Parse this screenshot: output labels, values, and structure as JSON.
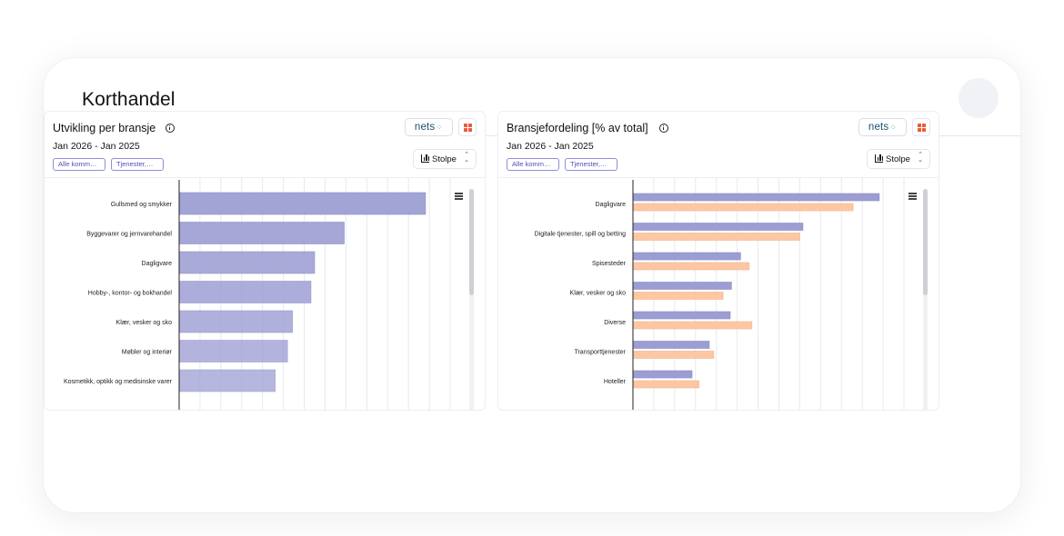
{
  "page": {
    "title": "Korthandel"
  },
  "colors": {
    "bar_primary": "#a3a4d6",
    "bar_secondary": "#fdc7a3",
    "axis": "#222222",
    "grid": "#e8e9ee",
    "accent_chip": "#4b4fb5",
    "brand_red": "#ef5a37"
  },
  "panels": [
    {
      "title": "Utvikling per bransje",
      "date_range": "Jan 2026 - Jan 2025",
      "filters": [
        "Alle komm…",
        "Tjenester,…"
      ],
      "logo": {
        "text": "nets",
        "icon": "nets-dots-icon"
      },
      "chart_type": "Stolpe",
      "icons": [
        "info-icon",
        "grid-icon",
        "bar-chart-icon",
        "sort-chevron-icon",
        "hamburger-menu-icon"
      ]
    },
    {
      "title": "Bransjefordeling [% av total]",
      "date_range": "Jan 2026 - Jan 2025",
      "filters": [
        "Alle komm…",
        "Tjenester,…"
      ],
      "logo": {
        "text": "nets",
        "icon": "nets-dots-icon"
      },
      "chart_type": "Stolpe",
      "icons": [
        "info-icon",
        "grid-icon",
        "bar-chart-icon",
        "sort-chevron-icon",
        "hamburger-menu-icon"
      ]
    }
  ],
  "chart_data": [
    {
      "type": "bar",
      "orientation": "horizontal",
      "categories": [
        "Gullsmed og smykker",
        "Byggevarer og jernvarehandel",
        "Dagligvare",
        "Hobby-, kontor- og bokhandel",
        "Klær, vesker og sko",
        "Møbler og interiør",
        "Kosmetikk, optikk og medisinske varer"
      ],
      "series": [
        {
          "values": [
            100,
            67,
            55,
            53.5,
            46,
            44,
            39
          ]
        }
      ],
      "xlim": [
        0,
        110
      ],
      "grid": true,
      "tick_labels_visible": false,
      "scrolled": true
    },
    {
      "type": "bar",
      "orientation": "horizontal",
      "categories": [
        "Dagligvare",
        "Digitale tjenester, spill og betting",
        "Spisesteder",
        "Klær, vesker og sko",
        "Diverse",
        "Transporttjenester",
        "Hoteller"
      ],
      "series": [
        {
          "values": [
            100,
            69,
            43.7,
            40,
            39.5,
            31,
            24
          ]
        },
        {
          "values": [
            89.4,
            67.7,
            47.2,
            36.6,
            48.3,
            32.8,
            26.8
          ]
        }
      ],
      "xlim": [
        0,
        110
      ],
      "grid": true,
      "tick_labels_visible": false,
      "scrolled": true
    }
  ]
}
